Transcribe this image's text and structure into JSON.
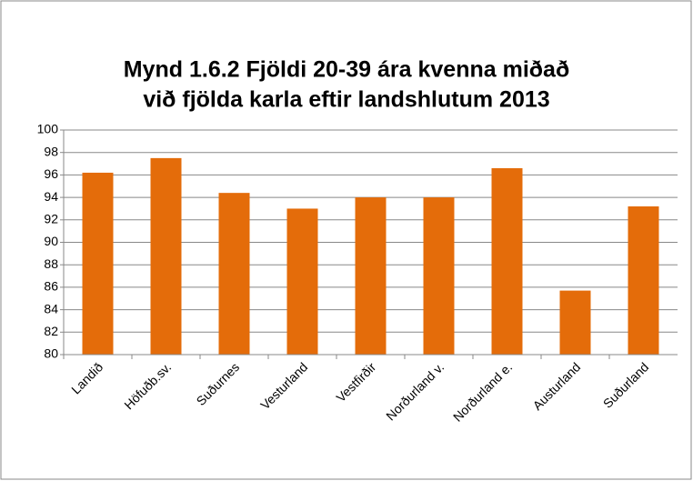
{
  "chart_data": {
    "type": "bar",
    "title": [
      "Mynd 1.6.2  Fjöldi 20-39 ára kvenna miðað",
      "við fjölda karla eftir landshlutum 2013"
    ],
    "categories": [
      "Landið",
      "Höfuðb.sv.",
      "Suðurnes",
      "Vesturland",
      "Vestfirðir",
      "Norðurland v.",
      "Norðurland e.",
      "Austurland",
      "Suðurland"
    ],
    "values": [
      96.2,
      97.5,
      94.4,
      93.0,
      94.0,
      94.0,
      96.6,
      85.7,
      93.2
    ],
    "color": "#e46c0a",
    "ylim": [
      80,
      100
    ],
    "yticks": [
      80,
      82,
      84,
      86,
      88,
      90,
      92,
      94,
      96,
      98,
      100
    ],
    "grid": true
  }
}
